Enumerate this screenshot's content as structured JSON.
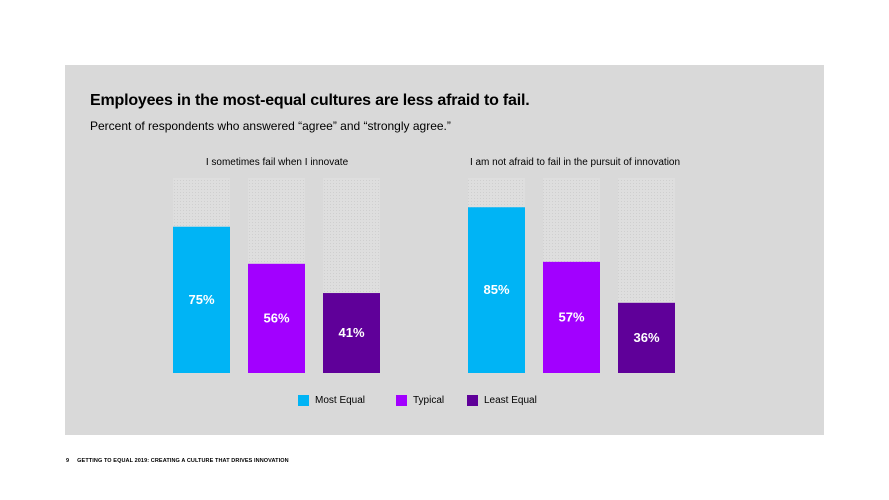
{
  "chart_title": "Employees in the most-equal cultures are less afraid to fail.",
  "chart_subtitle": "Percent of respondents who answered “agree” and “strongly agree.”",
  "footer": {
    "page_number": "9",
    "text": "GETTING TO EQUAL 2019: CREATING A CULTURE THAT DRIVES INNOVATION"
  },
  "colors": {
    "panel": "#d9d9d9",
    "most_equal": "#00b4f5",
    "typical": "#a200ff",
    "least_equal": "#5f0099",
    "track": "#e0e0e0"
  },
  "chart_data": [
    {
      "type": "bar",
      "title": "I sometimes fail when I innovate",
      "categories": [
        "Most Equal",
        "Typical",
        "Least Equal"
      ],
      "values": [
        75,
        56,
        41
      ],
      "value_labels": [
        "75%",
        "56%",
        "41%"
      ],
      "ylim": [
        0,
        100
      ]
    },
    {
      "type": "bar",
      "title": "I am not afraid to fail in the pursuit of innovation",
      "categories": [
        "Most Equal",
        "Typical",
        "Least Equal"
      ],
      "values": [
        85,
        57,
        36
      ],
      "value_labels": [
        "85%",
        "57%",
        "36%"
      ],
      "ylim": [
        0,
        100
      ]
    }
  ],
  "legend": [
    {
      "label": "Most Equal",
      "color": "#00b4f5"
    },
    {
      "label": "Typical",
      "color": "#a200ff"
    },
    {
      "label": "Least Equal",
      "color": "#5f0099"
    }
  ]
}
